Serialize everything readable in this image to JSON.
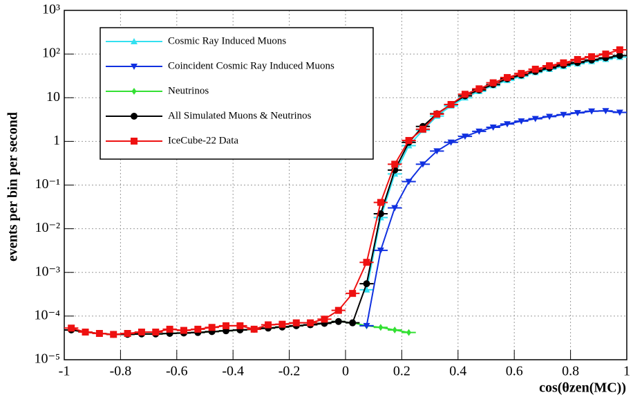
{
  "chart_data": {
    "type": "line",
    "log_y": true,
    "grid": true,
    "legend": "top-left",
    "ylabel": "events per bin per second",
    "xlabel": "cos(θzen(MC))",
    "xlim": [
      -1,
      1
    ],
    "xticks": [
      -1,
      -0.8,
      -0.6,
      -0.4,
      -0.2,
      0,
      0.2,
      0.4,
      0.6,
      0.8,
      1
    ],
    "ylim": [
      1e-05,
      1000
    ],
    "yticks": [
      {
        "value": 1e-05,
        "label": "10⁻⁵"
      },
      {
        "value": 0.0001,
        "label": "10⁻⁴"
      },
      {
        "value": 0.001,
        "label": "10⁻³"
      },
      {
        "value": 0.01,
        "label": "10⁻²"
      },
      {
        "value": 0.1,
        "label": "10⁻¹"
      },
      1,
      10,
      {
        "value": 100,
        "label": "10²"
      },
      {
        "value": 1000,
        "label": "10³"
      }
    ],
    "x": [
      -0.975,
      -0.925,
      -0.875,
      -0.825,
      -0.775,
      -0.725,
      -0.675,
      -0.625,
      -0.575,
      -0.525,
      -0.475,
      -0.425,
      -0.375,
      -0.325,
      -0.275,
      -0.225,
      -0.175,
      -0.125,
      -0.075,
      -0.025,
      0.025,
      0.075,
      0.125,
      0.175,
      0.225,
      0.275,
      0.325,
      0.375,
      0.425,
      0.475,
      0.525,
      0.575,
      0.625,
      0.675,
      0.725,
      0.775,
      0.825,
      0.875,
      0.925,
      0.975
    ],
    "series": [
      {
        "name": "Cosmic Ray Induced Muons",
        "color": "#33e0f0",
        "marker": "triangle-up",
        "values": [
          null,
          null,
          null,
          null,
          null,
          null,
          null,
          null,
          null,
          null,
          null,
          null,
          null,
          null,
          null,
          null,
          null,
          null,
          null,
          null,
          null,
          0.0004,
          0.018,
          0.18,
          0.8,
          1.8,
          3.8,
          6.5,
          10,
          14,
          19,
          25,
          31,
          38,
          45,
          52,
          60,
          68,
          76,
          85
        ]
      },
      {
        "name": "Coincident Cosmic Ray Induced Muons",
        "color": "#1030e0",
        "marker": "triangle-down",
        "values": [
          null,
          null,
          null,
          null,
          null,
          null,
          null,
          null,
          null,
          null,
          null,
          null,
          null,
          null,
          null,
          null,
          null,
          null,
          null,
          null,
          null,
          6e-05,
          0.0032,
          0.03,
          0.12,
          0.3,
          0.6,
          0.95,
          1.3,
          1.7,
          2.1,
          2.5,
          2.9,
          3.3,
          3.7,
          4.1,
          4.5,
          4.9,
          5.0,
          4.6
        ]
      },
      {
        "name": "Neutrinos",
        "color": "#33e033",
        "marker": "diamond",
        "values": [
          4.8e-05,
          4.3e-05,
          4e-05,
          3.8e-05,
          3.8e-05,
          3.9e-05,
          3.9e-05,
          4e-05,
          4.1e-05,
          4.2e-05,
          4.4e-05,
          4.6e-05,
          4.8e-05,
          5e-05,
          5.3e-05,
          5.6e-05,
          6e-05,
          6.3e-05,
          6.8e-05,
          7.5e-05,
          7e-05,
          6e-05,
          5.5e-05,
          4.8e-05,
          4.2e-05,
          null,
          null,
          null,
          null,
          null,
          null,
          null,
          null,
          null,
          null,
          null,
          null,
          null,
          null,
          null
        ]
      },
      {
        "name": "All Simulated Muons & Neutrinos",
        "color": "#000000",
        "marker": "circle",
        "values": [
          4.8e-05,
          4.3e-05,
          4e-05,
          3.8e-05,
          3.8e-05,
          3.9e-05,
          3.9e-05,
          4e-05,
          4.1e-05,
          4.2e-05,
          4.4e-05,
          4.6e-05,
          4.8e-05,
          5e-05,
          5.3e-05,
          5.6e-05,
          6e-05,
          6.3e-05,
          6.8e-05,
          7.5e-05,
          7e-05,
          0.00055,
          0.022,
          0.22,
          0.95,
          2.2,
          4.3,
          7,
          11,
          15,
          20,
          27,
          33,
          40,
          48,
          56,
          64,
          73,
          82,
          92
        ]
      },
      {
        "name": "IceCube-22 Data",
        "color": "#ee1111",
        "marker": "square",
        "values": [
          5.3e-05,
          4.3e-05,
          4e-05,
          3.8e-05,
          4e-05,
          4.3e-05,
          4.3e-05,
          5e-05,
          4.7e-05,
          5e-05,
          5.5e-05,
          6e-05,
          6e-05,
          5e-05,
          6.3e-05,
          6.5e-05,
          7e-05,
          7e-05,
          8.5e-05,
          0.000135,
          0.00033,
          0.0017,
          0.04,
          0.3,
          1.05,
          1.9,
          4.2,
          7,
          12,
          16,
          22,
          29,
          36,
          45,
          54,
          63,
          75,
          87,
          100,
          125
        ]
      }
    ]
  }
}
